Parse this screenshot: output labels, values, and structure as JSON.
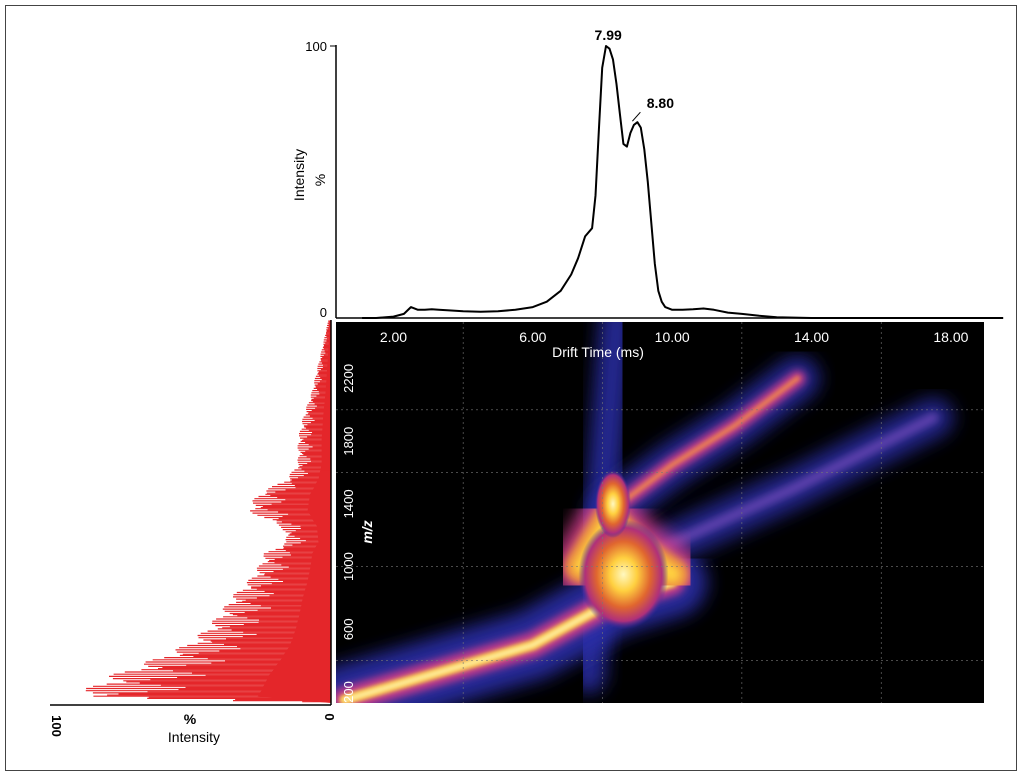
{
  "chart_data": [
    {
      "type": "line",
      "ylabel": "Intensity",
      "ylabel_unit": "%",
      "ylim": [
        0,
        100
      ],
      "xlim": [
        0,
        19.5
      ],
      "y_ticks": [
        "100",
        "0"
      ],
      "series": [
        {
          "x": [
            1.1,
            1.5,
            2.0,
            2.3,
            2.5,
            2.7,
            2.9,
            3.1,
            3.3,
            3.6,
            4.0,
            4.5,
            5.0,
            5.5,
            6.0,
            6.4,
            6.8,
            7.1,
            7.3,
            7.5,
            7.7,
            7.8,
            7.9,
            7.99,
            8.1,
            8.2,
            8.3,
            8.4,
            8.5,
            8.6,
            8.7,
            8.8,
            8.9,
            9.0,
            9.1,
            9.2,
            9.3,
            9.4,
            9.5,
            9.6,
            9.7,
            9.8,
            10.0,
            10.3,
            10.6,
            10.9,
            11.2,
            11.6,
            12.0,
            12.5,
            13.0,
            14.0,
            16.0,
            19.5
          ],
          "y": [
            0,
            0,
            0.5,
            1.5,
            4,
            3,
            3,
            3.2,
            3,
            2.8,
            2.5,
            2.3,
            2.5,
            3,
            4,
            6,
            10,
            16,
            22,
            30,
            33,
            45,
            70,
            92,
            100,
            99,
            95,
            86,
            75,
            64,
            63,
            68,
            71,
            72,
            70,
            62,
            50,
            35,
            20,
            10,
            6,
            4,
            3,
            3,
            3.2,
            3.5,
            3,
            2,
            1.5,
            0.8,
            0.3,
            0,
            0,
            0
          ]
        }
      ],
      "annotations": [
        {
          "label": "7.99",
          "x": 7.99,
          "y": 100
        },
        {
          "label": "8.80",
          "x": 8.8,
          "y": 72
        }
      ]
    },
    {
      "type": "heatmap",
      "xlabel": "Drift Time (ms)",
      "ylabel": "m/z",
      "xlim": [
        0.35,
        18.95
      ],
      "ylim": [
        130,
        2560
      ],
      "x_ticks": [
        "2.00",
        "6.00",
        "10.00",
        "14.00",
        "18.00"
      ],
      "y_ticks": [
        "200",
        "600",
        "1000",
        "1400",
        "1800",
        "2200"
      ],
      "y_tick_values": [
        200,
        600,
        1000,
        1400,
        1800,
        2200
      ],
      "ridges": [
        {
          "name": "main-trend",
          "x": [
            0.6,
            6.0,
            8.3,
            10.0
          ],
          "mz": [
            150,
            500,
            780,
            900
          ],
          "intensity": 1.0
        },
        {
          "name": "core-blob",
          "x": [
            7.4,
            8.2,
            9.0,
            10.0
          ],
          "mz": [
            1000,
            1300,
            1100,
            950
          ],
          "intensity": 1.0
        },
        {
          "name": "upper-band",
          "x": [
            8.2,
            10.0,
            11.8,
            13.6
          ],
          "mz": [
            1350,
            1650,
            1900,
            2200
          ],
          "intensity": 0.6
        },
        {
          "name": "lower-band",
          "x": [
            9.0,
            11.0,
            13.5,
            17.5
          ],
          "mz": [
            1050,
            1250,
            1500,
            1950
          ],
          "intensity": 0.35
        },
        {
          "name": "vertical-streak",
          "x": [
            7.6,
            8.4
          ],
          "mz": [
            300,
            2560
          ],
          "intensity": 0.3
        }
      ]
    },
    {
      "type": "bar",
      "orientation": "horizontal",
      "xlabel": "Intensity",
      "xlabel_unit": "%",
      "x_ticks": [
        "100",
        "0"
      ],
      "xlim": [
        0,
        100
      ],
      "mz_range": [
        130,
        2560
      ],
      "envelope": [
        {
          "mz": 130,
          "value": 0
        },
        {
          "mz": 170,
          "value": 94
        },
        {
          "mz": 220,
          "value": 88
        },
        {
          "mz": 300,
          "value": 80
        },
        {
          "mz": 400,
          "value": 65
        },
        {
          "mz": 500,
          "value": 52
        },
        {
          "mz": 600,
          "value": 45
        },
        {
          "mz": 700,
          "value": 40
        },
        {
          "mz": 800,
          "value": 36
        },
        {
          "mz": 900,
          "value": 30
        },
        {
          "mz": 1000,
          "value": 26
        },
        {
          "mz": 1080,
          "value": 24
        },
        {
          "mz": 1150,
          "value": 16
        },
        {
          "mz": 1250,
          "value": 18
        },
        {
          "mz": 1350,
          "value": 30
        },
        {
          "mz": 1450,
          "value": 27
        },
        {
          "mz": 1550,
          "value": 16
        },
        {
          "mz": 1650,
          "value": 12
        },
        {
          "mz": 1800,
          "value": 12
        },
        {
          "mz": 1950,
          "value": 10
        },
        {
          "mz": 2100,
          "value": 7
        },
        {
          "mz": 2250,
          "value": 5
        },
        {
          "mz": 2400,
          "value": 3
        },
        {
          "mz": 2560,
          "value": 1
        }
      ]
    }
  ],
  "colors": {
    "heatmap_background": "#000000",
    "heatmap_low": "#2a2fa8",
    "heatmap_mid": "#d23d8a",
    "heatmap_high": "#ffd040",
    "heatmap_peak": "#fff8c0",
    "mass_spectrum": "#e4262a",
    "drift_trace": "#000000"
  }
}
